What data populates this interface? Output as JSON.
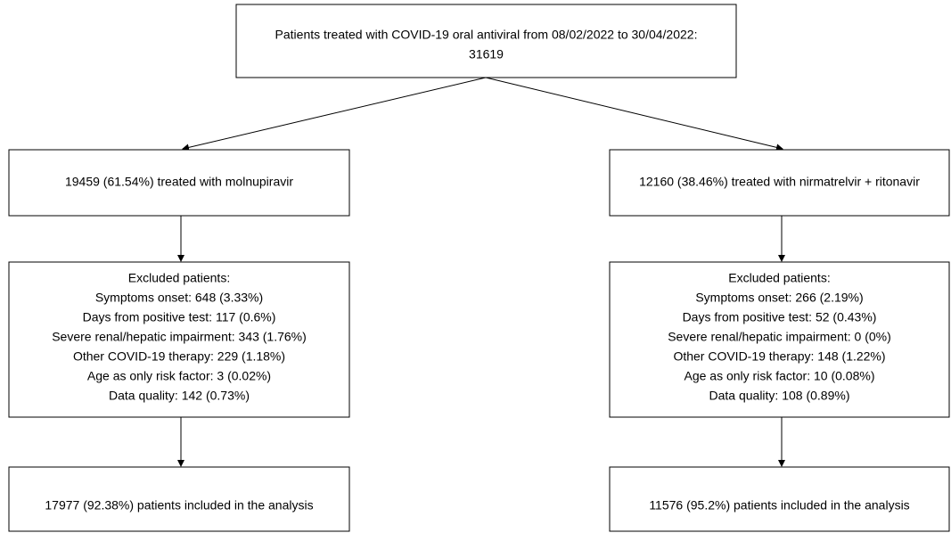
{
  "nodes": [
    {
      "lines": [
        "Patients treated with COVID-19 oral antiviral from 08/02/2022 to 30/04/2022:",
        "31619"
      ]
    },
    {
      "lines": [
        "19459 (61.54%) treated with molnupiravir"
      ]
    },
    {
      "lines": [
        "12160 (38.46%) treated with nirmatrelvir + ritonavir"
      ]
    },
    {
      "lines": [
        "Excluded patients:",
        "Symptoms onset: 648 (3.33%)",
        "Days from positive test: 117 (0.6%)",
        "Severe renal/hepatic impairment: 343 (1.76%)",
        "Other COVID-19 therapy: 229 (1.18%)",
        "Age as only risk factor: 3 (0.02%)",
        "Data quality: 142 (0.73%)"
      ]
    },
    {
      "lines": [
        "Excluded patients:",
        "Symptoms onset: 266 (2.19%)",
        "Days from positive test: 52 (0.43%)",
        "Severe renal/hepatic impairment: 0 (0%)",
        "Other COVID-19 therapy: 148 (1.22%)",
        "Age as only risk factor: 10 (0.08%)",
        "Data quality: 108 (0.89%)"
      ]
    },
    {
      "lines": [
        "17977 (92.38%) patients included in the analysis"
      ]
    },
    {
      "lines": [
        "11576 (95.2%) patients included in the analysis"
      ]
    }
  ]
}
